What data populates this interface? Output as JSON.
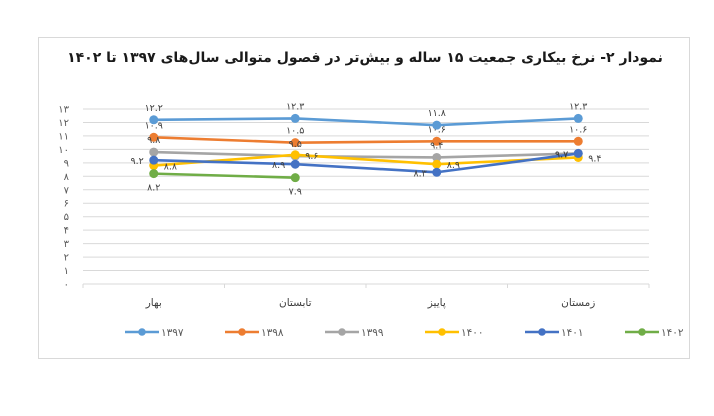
{
  "chart_data": {
    "type": "line",
    "title": "نمودار ۲- نرخ بیکاری جمعیت ۱۵ ساله و بیش‌تر در فصول متوالی سال‌های ۱۳۹۷ تا ۱۴۰۲",
    "xlabel": "",
    "ylabel": "",
    "ylim": [
      0,
      13
    ],
    "yticks": [
      "۰",
      "۱",
      "۲",
      "۳",
      "۴",
      "۵",
      "۶",
      "۷",
      "۸",
      "۹",
      "۱۰",
      "۱۱",
      "۱۲",
      "۱۳"
    ],
    "grid": true,
    "legend_position": "bottom",
    "categories": [
      "بهار",
      "تابستان",
      "پاییز",
      "زمستان"
    ],
    "series": [
      {
        "name": "۱۳۹۷",
        "color": "#5B9BD5",
        "values": [
          12.2,
          12.3,
          11.8,
          12.3
        ],
        "labels": [
          "۱۲.۲",
          "۱۲.۳",
          "۱۱.۸",
          "۱۲.۳"
        ],
        "label_pos": [
          "above",
          "above",
          "above",
          "above"
        ]
      },
      {
        "name": "۱۳۹۸",
        "color": "#ED7D31",
        "values": [
          10.9,
          10.5,
          10.6,
          10.6
        ],
        "labels": [
          "۱۰.۹",
          "۱۰.۵",
          "۱۰.۶",
          "۱۰.۶"
        ],
        "label_pos": [
          "above",
          "above",
          "above",
          "above"
        ]
      },
      {
        "name": "۱۳۹۹",
        "color": "#A5A5A5",
        "values": [
          9.8,
          9.5,
          9.4,
          9.7
        ],
        "labels": [
          "۹.۸",
          "۹.۵",
          "۹.۴",
          "۹.۷"
        ],
        "label_pos": [
          "above",
          "above",
          "above",
          "left"
        ]
      },
      {
        "name": "۱۴۰۰",
        "color": "#FFC000",
        "values": [
          8.8,
          9.6,
          8.9,
          9.4
        ],
        "labels": [
          "۸.۸",
          "۹.۶",
          "۸.۹",
          "۹.۴"
        ],
        "label_pos": [
          "right",
          "right",
          "right",
          "right"
        ]
      },
      {
        "name": "۱۴۰۱",
        "color": "#4472C4",
        "values": [
          9.2,
          8.9,
          8.3,
          9.7
        ],
        "labels": [
          "۹.۲",
          "۸.۹",
          "۸.۳",
          "۹.۷"
        ],
        "label_pos": [
          "left",
          "left",
          "left",
          "left"
        ]
      },
      {
        "name": "۱۴۰۲",
        "color": "#70AD47",
        "values": [
          8.2,
          7.9,
          null,
          null
        ],
        "labels": [
          "۸.۲",
          "۷.۹",
          null,
          null
        ],
        "label_pos": [
          "below",
          "below",
          null,
          null
        ]
      }
    ]
  }
}
